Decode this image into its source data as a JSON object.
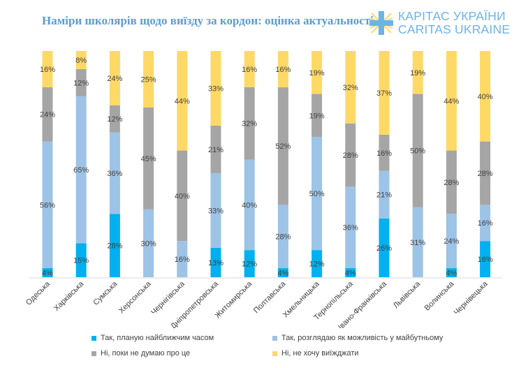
{
  "title": "Наміри школярів щодо виїзду за кордон: оцінка актуальності",
  "logo": {
    "line1": "КАРІТАС УКРАЇНИ",
    "line2": "CARITAS UKRAINE"
  },
  "chart_data": {
    "type": "bar",
    "stacked": true,
    "title": "Наміри школярів щодо виїзду за кордон: оцінка актуальності",
    "xlabel": "",
    "ylabel": "",
    "ylim": [
      0,
      100
    ],
    "grid": false,
    "legend_position": "bottom",
    "categories": [
      "Одеська",
      "Харківська",
      "Сумська",
      "Херсонська",
      "Чернігівська",
      "Дніпропетровська",
      "Житомирська",
      "Полтавська",
      "Хмельницька",
      "Тернопільська",
      "Івано-Франківська",
      "Львівська",
      "Волинська",
      "Чернівецька"
    ],
    "series": [
      {
        "name": "Так, планую найближчим часом",
        "color": "#00b0f0",
        "values": [
          4,
          15,
          28,
          0,
          0,
          13,
          12,
          4,
          12,
          4,
          26,
          0,
          4,
          16
        ]
      },
      {
        "name": "Так, розглядаю як можливість у майбутньому",
        "color": "#9dc3e6",
        "values": [
          56,
          65,
          36,
          30,
          16,
          33,
          40,
          28,
          50,
          36,
          21,
          31,
          24,
          16
        ]
      },
      {
        "name": "Ні, поки не думаю про це",
        "color": "#a5a5a5",
        "values": [
          24,
          12,
          12,
          45,
          40,
          21,
          32,
          52,
          19,
          28,
          16,
          50,
          28,
          28
        ]
      },
      {
        "name": "Ні, не хочу виїжджати",
        "color": "#ffd966",
        "values": [
          16,
          8,
          24,
          25,
          44,
          33,
          16,
          16,
          19,
          32,
          37,
          19,
          44,
          40
        ]
      }
    ]
  }
}
